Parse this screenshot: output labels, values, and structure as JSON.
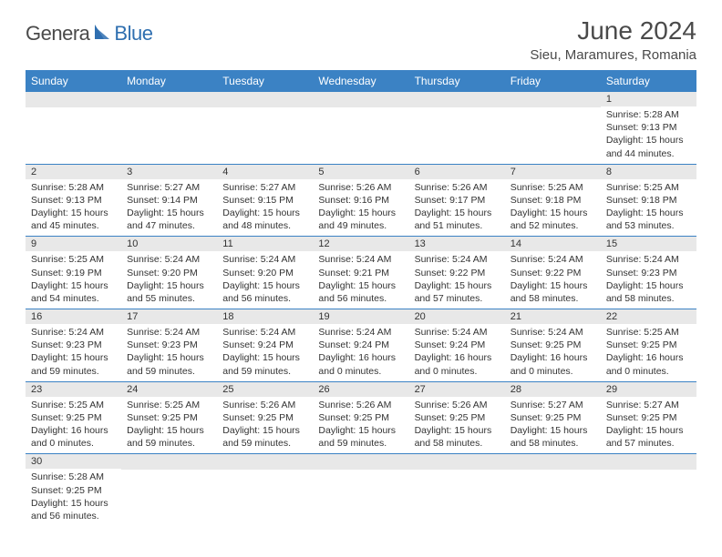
{
  "logo": {
    "part1": "Genera",
    "part2": "Blue"
  },
  "title": "June 2024",
  "location": "Sieu, Maramures, Romania",
  "colors": {
    "header_bg": "#3b82c4",
    "header_text": "#ffffff",
    "daynum_bg": "#e8e8e8",
    "row_divider": "#3b82c4",
    "logo_gray": "#4a4a4a",
    "logo_blue": "#2f6fb0"
  },
  "weekdays": [
    "Sunday",
    "Monday",
    "Tuesday",
    "Wednesday",
    "Thursday",
    "Friday",
    "Saturday"
  ],
  "weeks": [
    [
      {
        "n": "",
        "lines": []
      },
      {
        "n": "",
        "lines": []
      },
      {
        "n": "",
        "lines": []
      },
      {
        "n": "",
        "lines": []
      },
      {
        "n": "",
        "lines": []
      },
      {
        "n": "",
        "lines": []
      },
      {
        "n": "1",
        "lines": [
          "Sunrise: 5:28 AM",
          "Sunset: 9:13 PM",
          "Daylight: 15 hours",
          "and 44 minutes."
        ]
      }
    ],
    [
      {
        "n": "2",
        "lines": [
          "Sunrise: 5:28 AM",
          "Sunset: 9:13 PM",
          "Daylight: 15 hours",
          "and 45 minutes."
        ]
      },
      {
        "n": "3",
        "lines": [
          "Sunrise: 5:27 AM",
          "Sunset: 9:14 PM",
          "Daylight: 15 hours",
          "and 47 minutes."
        ]
      },
      {
        "n": "4",
        "lines": [
          "Sunrise: 5:27 AM",
          "Sunset: 9:15 PM",
          "Daylight: 15 hours",
          "and 48 minutes."
        ]
      },
      {
        "n": "5",
        "lines": [
          "Sunrise: 5:26 AM",
          "Sunset: 9:16 PM",
          "Daylight: 15 hours",
          "and 49 minutes."
        ]
      },
      {
        "n": "6",
        "lines": [
          "Sunrise: 5:26 AM",
          "Sunset: 9:17 PM",
          "Daylight: 15 hours",
          "and 51 minutes."
        ]
      },
      {
        "n": "7",
        "lines": [
          "Sunrise: 5:25 AM",
          "Sunset: 9:18 PM",
          "Daylight: 15 hours",
          "and 52 minutes."
        ]
      },
      {
        "n": "8",
        "lines": [
          "Sunrise: 5:25 AM",
          "Sunset: 9:18 PM",
          "Daylight: 15 hours",
          "and 53 minutes."
        ]
      }
    ],
    [
      {
        "n": "9",
        "lines": [
          "Sunrise: 5:25 AM",
          "Sunset: 9:19 PM",
          "Daylight: 15 hours",
          "and 54 minutes."
        ]
      },
      {
        "n": "10",
        "lines": [
          "Sunrise: 5:24 AM",
          "Sunset: 9:20 PM",
          "Daylight: 15 hours",
          "and 55 minutes."
        ]
      },
      {
        "n": "11",
        "lines": [
          "Sunrise: 5:24 AM",
          "Sunset: 9:20 PM",
          "Daylight: 15 hours",
          "and 56 minutes."
        ]
      },
      {
        "n": "12",
        "lines": [
          "Sunrise: 5:24 AM",
          "Sunset: 9:21 PM",
          "Daylight: 15 hours",
          "and 56 minutes."
        ]
      },
      {
        "n": "13",
        "lines": [
          "Sunrise: 5:24 AM",
          "Sunset: 9:22 PM",
          "Daylight: 15 hours",
          "and 57 minutes."
        ]
      },
      {
        "n": "14",
        "lines": [
          "Sunrise: 5:24 AM",
          "Sunset: 9:22 PM",
          "Daylight: 15 hours",
          "and 58 minutes."
        ]
      },
      {
        "n": "15",
        "lines": [
          "Sunrise: 5:24 AM",
          "Sunset: 9:23 PM",
          "Daylight: 15 hours",
          "and 58 minutes."
        ]
      }
    ],
    [
      {
        "n": "16",
        "lines": [
          "Sunrise: 5:24 AM",
          "Sunset: 9:23 PM",
          "Daylight: 15 hours",
          "and 59 minutes."
        ]
      },
      {
        "n": "17",
        "lines": [
          "Sunrise: 5:24 AM",
          "Sunset: 9:23 PM",
          "Daylight: 15 hours",
          "and 59 minutes."
        ]
      },
      {
        "n": "18",
        "lines": [
          "Sunrise: 5:24 AM",
          "Sunset: 9:24 PM",
          "Daylight: 15 hours",
          "and 59 minutes."
        ]
      },
      {
        "n": "19",
        "lines": [
          "Sunrise: 5:24 AM",
          "Sunset: 9:24 PM",
          "Daylight: 16 hours",
          "and 0 minutes."
        ]
      },
      {
        "n": "20",
        "lines": [
          "Sunrise: 5:24 AM",
          "Sunset: 9:24 PM",
          "Daylight: 16 hours",
          "and 0 minutes."
        ]
      },
      {
        "n": "21",
        "lines": [
          "Sunrise: 5:24 AM",
          "Sunset: 9:25 PM",
          "Daylight: 16 hours",
          "and 0 minutes."
        ]
      },
      {
        "n": "22",
        "lines": [
          "Sunrise: 5:25 AM",
          "Sunset: 9:25 PM",
          "Daylight: 16 hours",
          "and 0 minutes."
        ]
      }
    ],
    [
      {
        "n": "23",
        "lines": [
          "Sunrise: 5:25 AM",
          "Sunset: 9:25 PM",
          "Daylight: 16 hours",
          "and 0 minutes."
        ]
      },
      {
        "n": "24",
        "lines": [
          "Sunrise: 5:25 AM",
          "Sunset: 9:25 PM",
          "Daylight: 15 hours",
          "and 59 minutes."
        ]
      },
      {
        "n": "25",
        "lines": [
          "Sunrise: 5:26 AM",
          "Sunset: 9:25 PM",
          "Daylight: 15 hours",
          "and 59 minutes."
        ]
      },
      {
        "n": "26",
        "lines": [
          "Sunrise: 5:26 AM",
          "Sunset: 9:25 PM",
          "Daylight: 15 hours",
          "and 59 minutes."
        ]
      },
      {
        "n": "27",
        "lines": [
          "Sunrise: 5:26 AM",
          "Sunset: 9:25 PM",
          "Daylight: 15 hours",
          "and 58 minutes."
        ]
      },
      {
        "n": "28",
        "lines": [
          "Sunrise: 5:27 AM",
          "Sunset: 9:25 PM",
          "Daylight: 15 hours",
          "and 58 minutes."
        ]
      },
      {
        "n": "29",
        "lines": [
          "Sunrise: 5:27 AM",
          "Sunset: 9:25 PM",
          "Daylight: 15 hours",
          "and 57 minutes."
        ]
      }
    ],
    [
      {
        "n": "30",
        "lines": [
          "Sunrise: 5:28 AM",
          "Sunset: 9:25 PM",
          "Daylight: 15 hours",
          "and 56 minutes."
        ]
      },
      {
        "n": "",
        "lines": []
      },
      {
        "n": "",
        "lines": []
      },
      {
        "n": "",
        "lines": []
      },
      {
        "n": "",
        "lines": []
      },
      {
        "n": "",
        "lines": []
      },
      {
        "n": "",
        "lines": []
      }
    ]
  ]
}
